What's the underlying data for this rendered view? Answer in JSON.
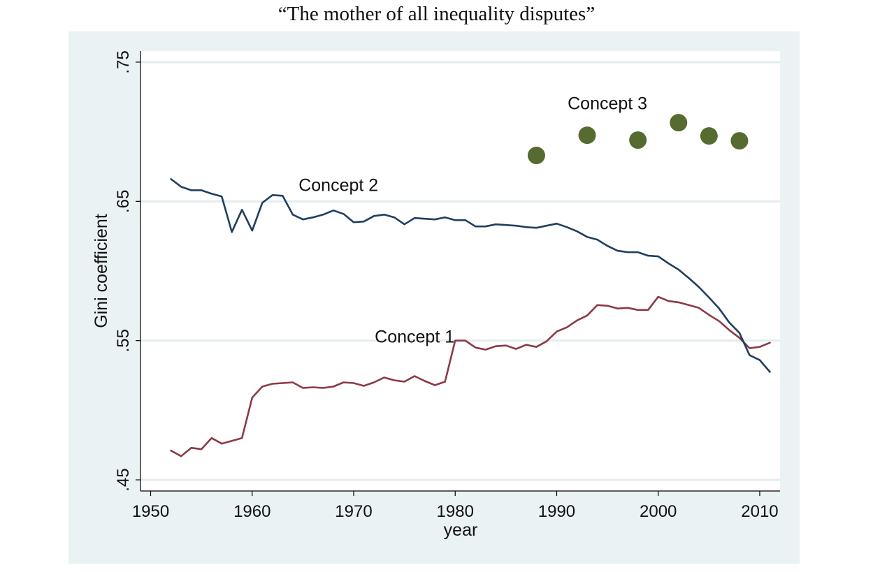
{
  "page": {
    "title": "“The mother of all inequality disputes”"
  },
  "chart_data": {
    "type": "line",
    "title": "“The mother of all inequality disputes”",
    "xlabel": "year",
    "ylabel": "Gini coefficient",
    "xlim": [
      1949,
      2012
    ],
    "ylim": [
      0.442,
      0.758
    ],
    "x_ticks": [
      1950,
      1960,
      1970,
      1980,
      1990,
      2000,
      2010
    ],
    "x_tick_labels": [
      "1950",
      "1960",
      "1970",
      "1980",
      "1990",
      "2000",
      "2010"
    ],
    "y_ticks": [
      0.45,
      0.55,
      0.65,
      0.75
    ],
    "y_tick_labels": [
      ".45",
      ".55",
      ".65",
      ".75"
    ],
    "grid": true,
    "series": [
      {
        "name": "Concept 1",
        "kind": "line",
        "color": "#8b3a46",
        "label_at": [
          1976,
          0.5485
        ],
        "points": [
          [
            1952,
            0.471
          ],
          [
            1953,
            0.467
          ],
          [
            1954,
            0.473
          ],
          [
            1955,
            0.472
          ],
          [
            1956,
            0.48
          ],
          [
            1957,
            0.476
          ],
          [
            1958,
            0.478
          ],
          [
            1959,
            0.48
          ],
          [
            1960,
            0.509
          ],
          [
            1961,
            0.517
          ],
          [
            1962,
            0.519
          ],
          [
            1963,
            0.5195
          ],
          [
            1964,
            0.52
          ],
          [
            1965,
            0.516
          ],
          [
            1966,
            0.5165
          ],
          [
            1967,
            0.516
          ],
          [
            1968,
            0.517
          ],
          [
            1969,
            0.52
          ],
          [
            1970,
            0.5195
          ],
          [
            1971,
            0.5175
          ],
          [
            1972,
            0.52
          ],
          [
            1973,
            0.5235
          ],
          [
            1974,
            0.5215
          ],
          [
            1975,
            0.5205
          ],
          [
            1976,
            0.5245
          ],
          [
            1977,
            0.521
          ],
          [
            1978,
            0.518
          ],
          [
            1979,
            0.5205
          ],
          [
            1980,
            0.55
          ],
          [
            1981,
            0.55
          ],
          [
            1982,
            0.545
          ],
          [
            1983,
            0.5435
          ],
          [
            1984,
            0.546
          ],
          [
            1985,
            0.5465
          ],
          [
            1986,
            0.544
          ],
          [
            1987,
            0.547
          ],
          [
            1988,
            0.5455
          ],
          [
            1989,
            0.5495
          ],
          [
            1990,
            0.5565
          ],
          [
            1991,
            0.5595
          ],
          [
            1992,
            0.5645
          ],
          [
            1993,
            0.568
          ],
          [
            1994,
            0.5755
          ],
          [
            1995,
            0.575
          ],
          [
            1996,
            0.573
          ],
          [
            1997,
            0.5735
          ],
          [
            1998,
            0.572
          ],
          [
            1999,
            0.572
          ],
          [
            2000,
            0.5815
          ],
          [
            2001,
            0.5785
          ],
          [
            2002,
            0.5775
          ],
          [
            2003,
            0.5755
          ],
          [
            2004,
            0.5735
          ],
          [
            2005,
            0.5685
          ],
          [
            2006,
            0.564
          ],
          [
            2007,
            0.5575
          ],
          [
            2008,
            0.552
          ],
          [
            2009,
            0.5445
          ],
          [
            2010,
            0.5455
          ],
          [
            2011,
            0.5485
          ]
        ]
      },
      {
        "name": "Concept 2",
        "kind": "line",
        "color": "#1f3f5f",
        "label_at": [
          1968.5,
          0.6575
        ],
        "points": [
          [
            1952,
            0.666
          ],
          [
            1953,
            0.6605
          ],
          [
            1954,
            0.658
          ],
          [
            1955,
            0.658
          ],
          [
            1956,
            0.6555
          ],
          [
            1957,
            0.6535
          ],
          [
            1958,
            0.628
          ],
          [
            1959,
            0.644
          ],
          [
            1960,
            0.629
          ],
          [
            1961,
            0.649
          ],
          [
            1962,
            0.6545
          ],
          [
            1963,
            0.654
          ],
          [
            1964,
            0.6405
          ],
          [
            1965,
            0.637
          ],
          [
            1966,
            0.6385
          ],
          [
            1967,
            0.6405
          ],
          [
            1968,
            0.6435
          ],
          [
            1969,
            0.641
          ],
          [
            1970,
            0.635
          ],
          [
            1971,
            0.6355
          ],
          [
            1972,
            0.6395
          ],
          [
            1973,
            0.6405
          ],
          [
            1974,
            0.6385
          ],
          [
            1975,
            0.6335
          ],
          [
            1976,
            0.638
          ],
          [
            1977,
            0.6375
          ],
          [
            1978,
            0.637
          ],
          [
            1979,
            0.6385
          ],
          [
            1980,
            0.6365
          ],
          [
            1981,
            0.6365
          ],
          [
            1982,
            0.632
          ],
          [
            1983,
            0.632
          ],
          [
            1984,
            0.6335
          ],
          [
            1985,
            0.633
          ],
          [
            1986,
            0.6325
          ],
          [
            1987,
            0.6315
          ],
          [
            1988,
            0.631
          ],
          [
            1989,
            0.6325
          ],
          [
            1990,
            0.634
          ],
          [
            1991,
            0.6315
          ],
          [
            1992,
            0.6285
          ],
          [
            1993,
            0.6245
          ],
          [
            1994,
            0.6225
          ],
          [
            1995,
            0.618
          ],
          [
            1996,
            0.6145
          ],
          [
            1997,
            0.6135
          ],
          [
            1998,
            0.6135
          ],
          [
            1999,
            0.611
          ],
          [
            2000,
            0.6105
          ],
          [
            2001,
            0.6055
          ],
          [
            2002,
            0.601
          ],
          [
            2003,
            0.595
          ],
          [
            2004,
            0.5885
          ],
          [
            2005,
            0.581
          ],
          [
            2006,
            0.573
          ],
          [
            2007,
            0.563
          ],
          [
            2008,
            0.5555
          ],
          [
            2009,
            0.5395
          ],
          [
            2010,
            0.536
          ],
          [
            2011,
            0.5275
          ]
        ]
      },
      {
        "name": "Concept 3",
        "kind": "scatter",
        "color": "#556b2f",
        "label_at": [
          1995,
          0.716
        ],
        "points": [
          [
            1988,
            0.683
          ],
          [
            1993,
            0.6975
          ],
          [
            1998,
            0.694
          ],
          [
            2002,
            0.7065
          ],
          [
            2005,
            0.697
          ],
          [
            2008,
            0.6935
          ]
        ]
      }
    ]
  }
}
